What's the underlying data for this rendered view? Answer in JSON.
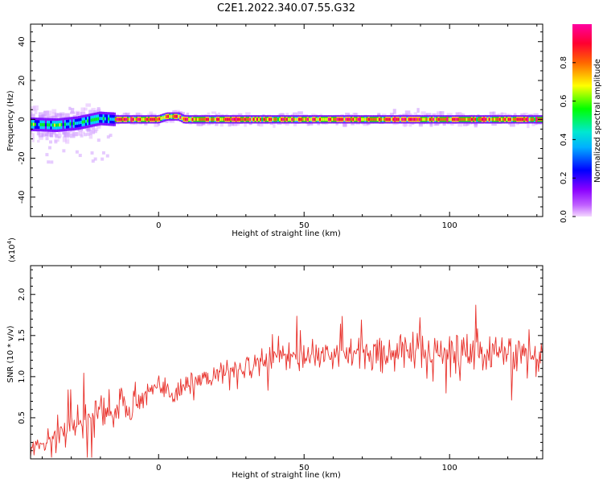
{
  "title": "C2E1.2022.340.07.55.G32",
  "chart_data": [
    {
      "type": "heatmap",
      "xlabel": "Height of straight line (km)",
      "ylabel": "Frequency (Hz)",
      "xlim": [
        -44,
        132
      ],
      "ylim": [
        -50,
        49
      ],
      "xticks": [
        0,
        50,
        100
      ],
      "yticks": [
        -40,
        -20,
        0,
        20,
        40
      ],
      "xtick_labels": [
        "0",
        "50",
        "100"
      ],
      "ytick_labels": [
        "-40",
        "-20",
        "0",
        "20",
        "40"
      ],
      "grid": false,
      "colorbar": {
        "label": "Normalized spectral amplitude",
        "range": [
          0,
          1
        ],
        "ticks": [
          0.0,
          0.2,
          0.4,
          0.6,
          0.8
        ],
        "tick_labels": [
          "0.0",
          "0.2",
          "0.4",
          "0.6",
          "0.8"
        ],
        "colors": [
          "#f4d8ff",
          "#8a00ff",
          "#0000ff",
          "#00e0ff",
          "#00ff00",
          "#ffff00",
          "#ff6600",
          "#ff0040",
          "#ff00a0"
        ]
      },
      "ridge": [
        {
          "x": -44,
          "f": -2.5
        },
        {
          "x": -35,
          "f": -3
        },
        {
          "x": -28,
          "f": -2
        },
        {
          "x": -20,
          "f": 0.5
        },
        {
          "x": -15,
          "f": 0
        },
        {
          "x": 0,
          "f": 0
        },
        {
          "x": 3,
          "f": 1.5
        },
        {
          "x": 7,
          "f": 1.5
        },
        {
          "x": 9,
          "f": 0
        },
        {
          "x": 132,
          "f": 0
        }
      ]
    },
    {
      "type": "line",
      "xlabel": "Height of straight line (km)",
      "ylabel": "SNR (10 * v/v)",
      "scale_label": "(x10",
      "scale_exp": "4",
      "scale_close": ")",
      "xlim": [
        -44,
        132
      ],
      "ylim": [
        0.0,
        2.35
      ],
      "xticks": [
        0,
        50,
        100
      ],
      "yticks": [
        0.5,
        1.0,
        1.5,
        2.0
      ],
      "xtick_labels": [
        "0",
        "50",
        "100"
      ],
      "ytick_labels": [
        "0.5",
        "1.0",
        "1.5",
        "2.0"
      ],
      "grid": false,
      "series": [
        {
          "color": "#e8302a",
          "trend_x": [
            -44,
            -35,
            -25,
            -15,
            -5,
            0,
            5,
            10,
            20,
            30,
            40,
            50,
            60,
            70,
            80,
            90,
            100,
            110,
            120,
            132
          ],
          "trend_y": [
            0.15,
            0.25,
            0.5,
            0.62,
            0.75,
            0.85,
            0.82,
            0.9,
            1.05,
            1.12,
            1.2,
            1.25,
            1.28,
            1.28,
            1.3,
            1.3,
            1.3,
            1.28,
            1.28,
            1.25
          ],
          "noise_x": [
            -44,
            -30,
            -20,
            0,
            30,
            60,
            80,
            90,
            100,
            110,
            132
          ],
          "noise_y": [
            0.12,
            0.25,
            0.3,
            0.18,
            0.16,
            0.2,
            0.24,
            0.38,
            0.34,
            0.3,
            0.32
          ]
        }
      ]
    }
  ]
}
